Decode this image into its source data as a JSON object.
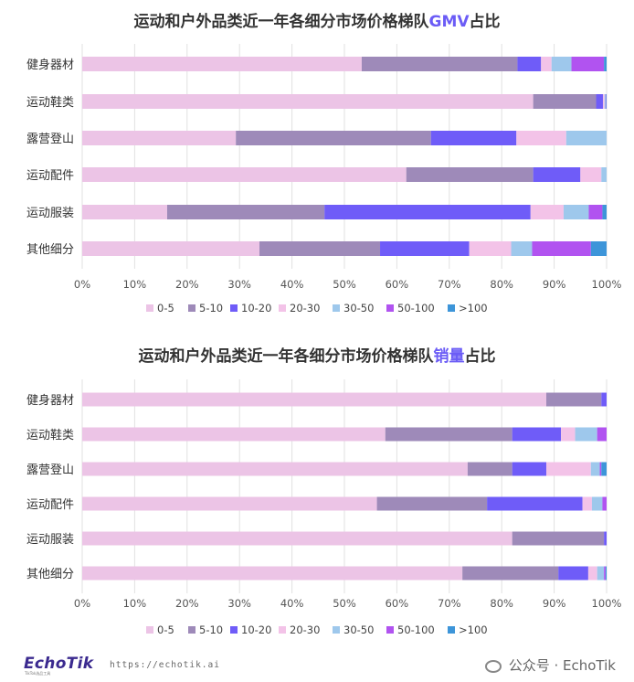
{
  "chart_data": [
    {
      "type": "bar",
      "orientation": "horizontal-stacked-100",
      "title_prefix": "运动和户外品类近一年各细分市场价格梯队",
      "title_highlight": "GMV",
      "title_suffix": "占比",
      "categories": [
        "健身器材",
        "运动鞋类",
        "露营登山",
        "运动配件",
        "运动服装",
        "其他细分"
      ],
      "xlim": [
        0,
        100
      ],
      "xticks": [
        "0%",
        "10%",
        "20%",
        "30%",
        "40%",
        "50%",
        "60%",
        "70%",
        "80%",
        "90%",
        "100%"
      ],
      "grid": true,
      "legend_position": "bottom",
      "series": [
        {
          "name": "0-5",
          "color": "#ecc4e6",
          "values": [
            53.3,
            86.0,
            29.3,
            61.8,
            16.2,
            33.8
          ]
        },
        {
          "name": "5-10",
          "color": "#9e8ab9",
          "values": [
            29.7,
            12.0,
            37.2,
            24.2,
            30.0,
            23.0
          ]
        },
        {
          "name": "10-20",
          "color": "#6f5cf8",
          "values": [
            4.5,
            1.3,
            16.3,
            9.0,
            39.3,
            17.0
          ]
        },
        {
          "name": "20-30",
          "color": "#f3c3e8",
          "values": [
            2.0,
            0.3,
            9.5,
            4.0,
            6.3,
            8.0
          ]
        },
        {
          "name": "30-50",
          "color": "#9ec8ec",
          "values": [
            3.8,
            0.2,
            7.7,
            1.0,
            4.8,
            4.0
          ]
        },
        {
          "name": "50-100",
          "color": "#b153f0",
          "values": [
            6.2,
            0.1,
            0,
            0,
            2.6,
            11.2
          ]
        },
        {
          "name": ">100",
          "color": "#3d95d9",
          "values": [
            0.5,
            0.1,
            0,
            0,
            0.8,
            3.0
          ]
        }
      ]
    },
    {
      "type": "bar",
      "orientation": "horizontal-stacked-100",
      "title_prefix": "运动和户外品类近一年各细分市场价格梯队",
      "title_highlight": "销量",
      "title_suffix": "占比",
      "categories": [
        "健身器材",
        "运动鞋类",
        "露营登山",
        "运动配件",
        "运动服装",
        "其他细分"
      ],
      "xlim": [
        0,
        100
      ],
      "xticks": [
        "0%",
        "10%",
        "20%",
        "30%",
        "40%",
        "50%",
        "60%",
        "70%",
        "80%",
        "90%",
        "100%"
      ],
      "grid": true,
      "legend_position": "bottom",
      "series": [
        {
          "name": "0-5",
          "color": "#ecc4e6",
          "values": [
            88.5,
            57.8,
            73.5,
            56.2,
            82.0,
            72.5
          ]
        },
        {
          "name": "5-10",
          "color": "#9e8ab9",
          "values": [
            10.5,
            24.2,
            8.5,
            21.0,
            17.5,
            18.3
          ]
        },
        {
          "name": "10-20",
          "color": "#6f5cf8",
          "values": [
            1.0,
            9.3,
            6.5,
            18.2,
            0.5,
            5.7
          ]
        },
        {
          "name": "20-30",
          "color": "#f3c3e8",
          "values": [
            0,
            2.7,
            8.5,
            1.8,
            0,
            1.7
          ]
        },
        {
          "name": "30-50",
          "color": "#9ec8ec",
          "values": [
            0,
            4.2,
            1.7,
            2.0,
            0,
            1.3
          ]
        },
        {
          "name": "50-100",
          "color": "#b153f0",
          "values": [
            0,
            1.8,
            0.3,
            0.8,
            0,
            0.3
          ]
        },
        {
          "name": ">100",
          "color": "#3d95d9",
          "values": [
            0,
            0,
            1.0,
            0,
            0,
            0.2
          ]
        }
      ]
    }
  ],
  "footer": {
    "logo": "EchoTik",
    "logo_sub": "TikTok选品工具",
    "url": "https://echotik.ai",
    "wechat": "公众号 · EchoTik"
  }
}
